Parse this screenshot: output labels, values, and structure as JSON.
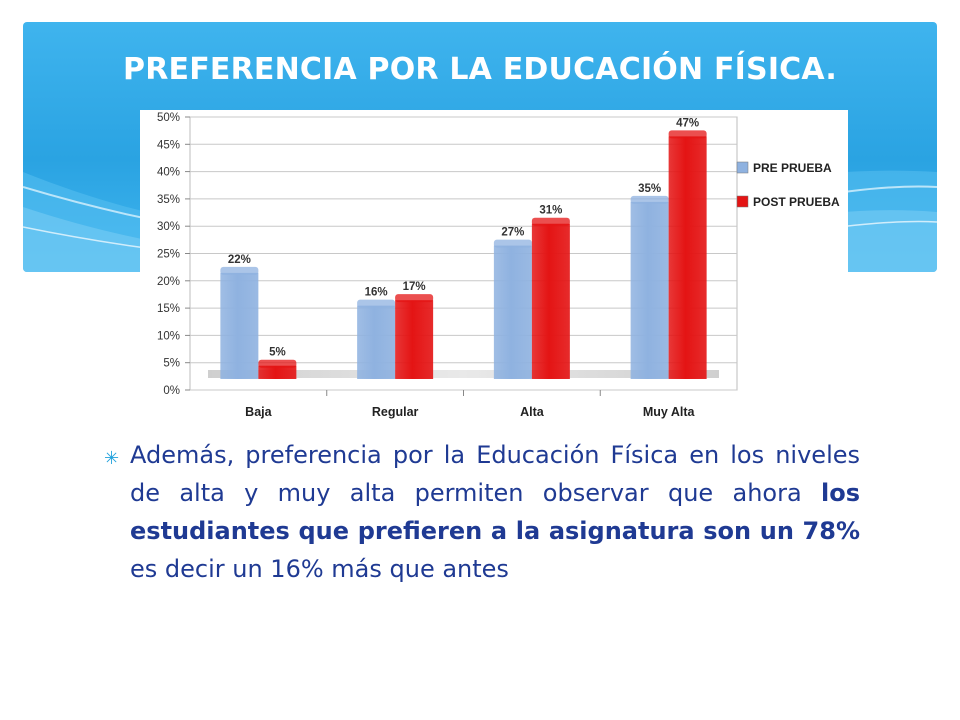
{
  "slide": {
    "title": "PREFERENCIA POR LA EDUCACIÓN FÍSICA.",
    "bullet": {
      "part1": "Además, preferencia por la Educación Física en los niveles de alta y muy alta permiten observar que ahora ",
      "bold": "los estudiantes que prefieren a la asignatura son un 78%",
      "part2": " es decir un 16% más que antes"
    },
    "colors": {
      "header": "#2aa3e2",
      "bullet_text": "#1f3a93",
      "bullet_marker": "#22a2dd"
    }
  },
  "chart_data": {
    "type": "bar",
    "categories": [
      "Baja",
      "Regular",
      "Alta",
      "Muy Alta"
    ],
    "series": [
      {
        "name": "PRE PRUEBA",
        "values": [
          22,
          16,
          27,
          35
        ],
        "labels": [
          "22%",
          "16%",
          "27%",
          "35%"
        ],
        "color": "#8fb2e0"
      },
      {
        "name": "POST PRUEBA",
        "values": [
          5,
          17,
          31,
          47
        ],
        "labels": [
          "5%",
          "17%",
          "31%",
          "47%"
        ],
        "color": "#e41414"
      }
    ],
    "yticks": [
      "0%",
      "5%",
      "10%",
      "15%",
      "20%",
      "25%",
      "30%",
      "35%",
      "40%",
      "45%",
      "50%"
    ],
    "ylim": [
      0,
      50
    ],
    "grid": true,
    "legend_position": "right"
  }
}
